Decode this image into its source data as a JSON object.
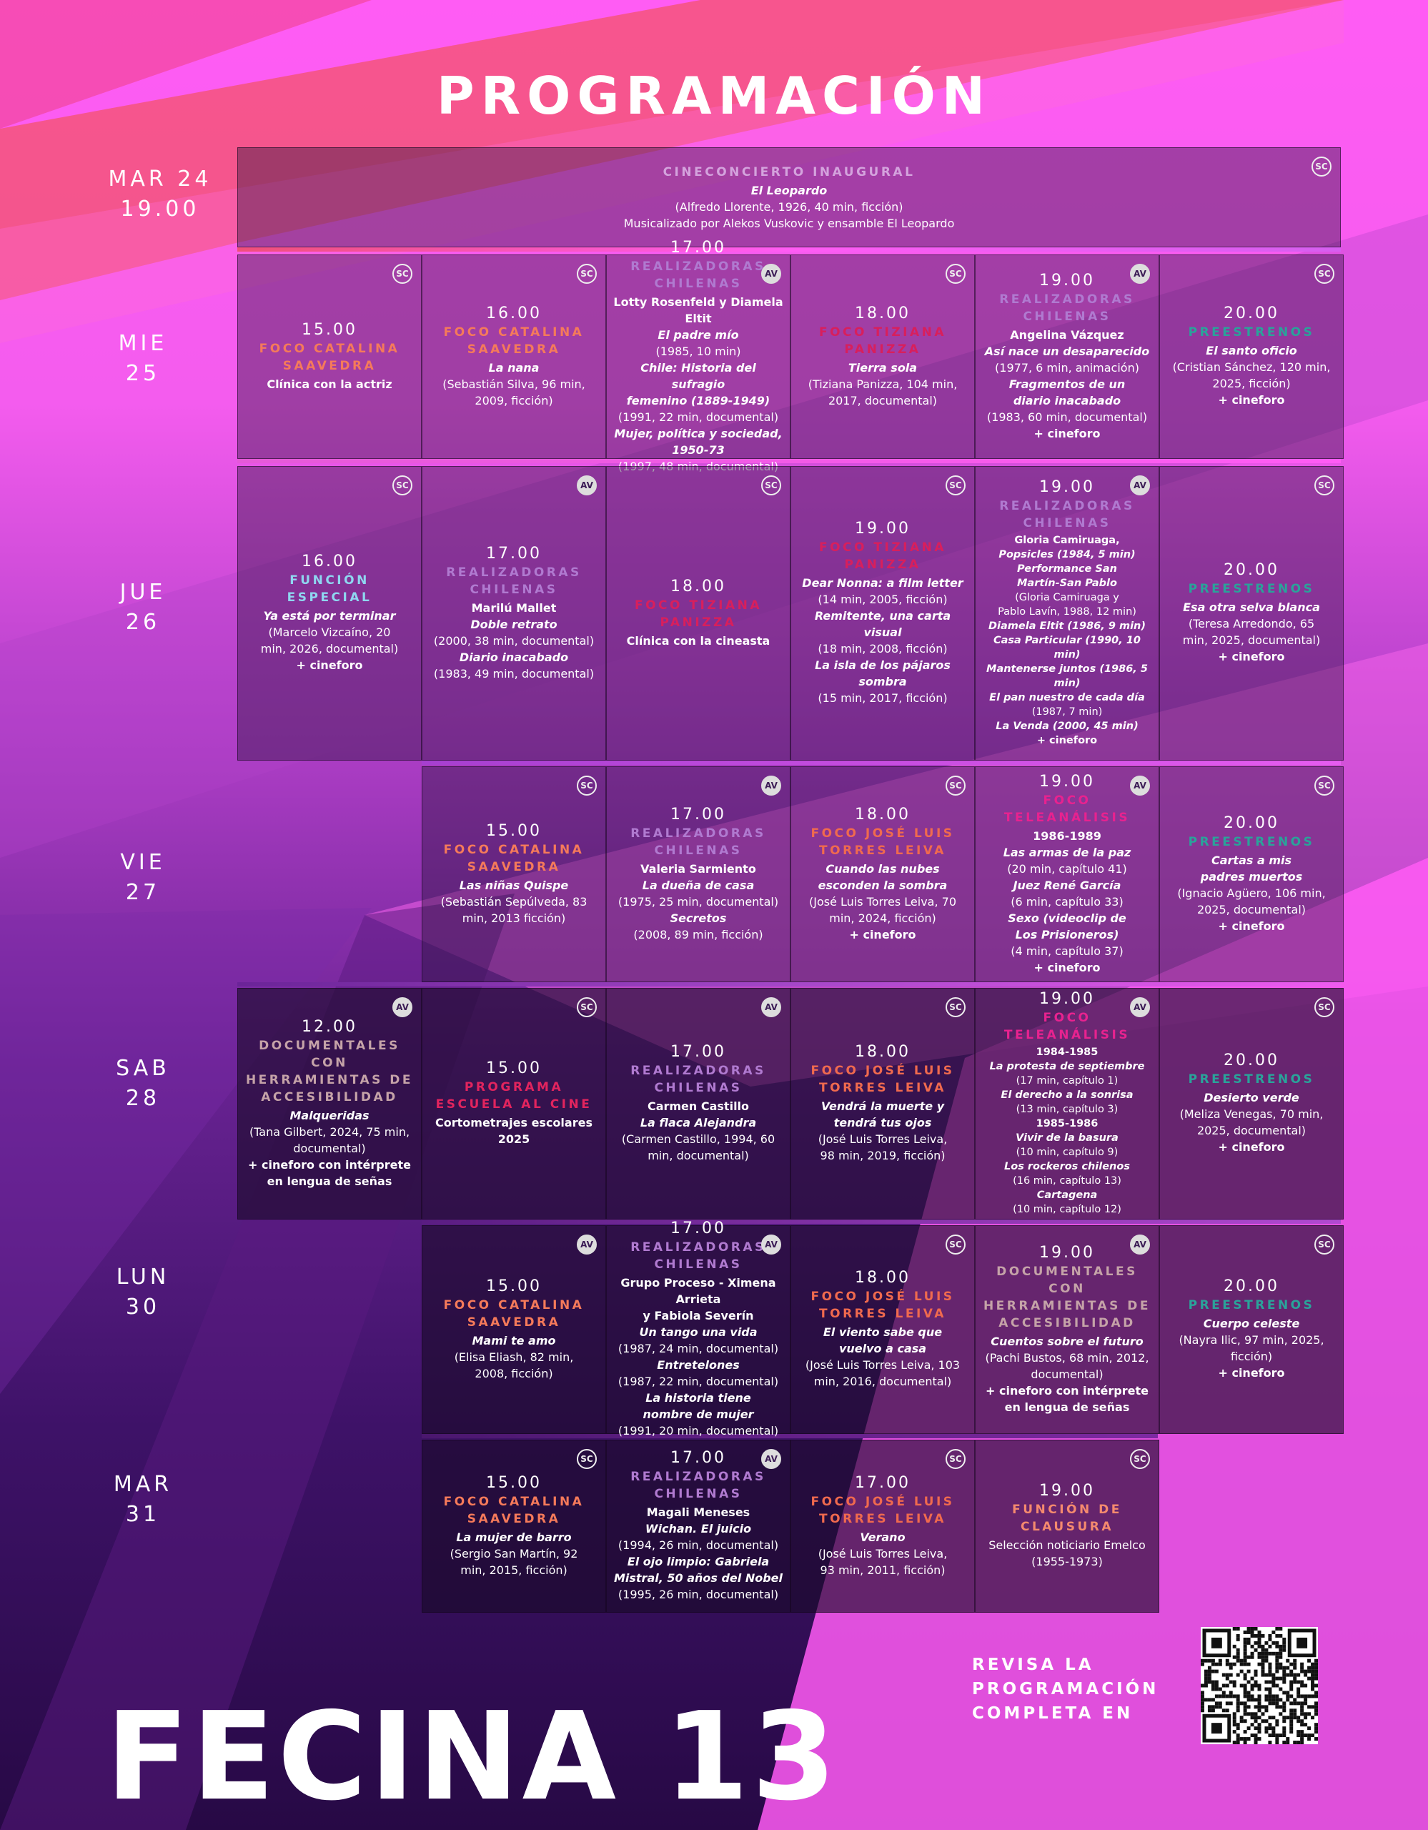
{
  "title": "PROGRAMACIÓN",
  "colors": {
    "foco_catalina": "#f57a5a",
    "realizadoras": "#b07ad0",
    "foco_tiziana": "#d81f5c",
    "preestrenos": "#2aa39a",
    "funcion_especial": "#8fd7f0",
    "foco_jose_luis": "#f06a4e",
    "foco_teleanalisis": "#e8228f",
    "documentales": "#c5a3a8",
    "escuela": "#e2245e",
    "clausura": "#f58a6e",
    "inaugural": "#d4a3dd"
  },
  "days": [
    {
      "day": "MAR 24",
      "time": "19.00"
    },
    {
      "day": "MIE",
      "num": "25"
    },
    {
      "day": "JUE",
      "num": "26"
    },
    {
      "day": "VIE",
      "num": "27"
    },
    {
      "day": "SAB",
      "num": "28"
    },
    {
      "day": "LUN",
      "num": "30"
    },
    {
      "day": "MAR",
      "num": "31"
    }
  ],
  "inaugural": {
    "badge": "SC",
    "category": "CINECONCIERTO INAUGURAL",
    "film": "El Leopardo",
    "line1": "(Alfredo Llorente, 1926, 40 min, ficción)",
    "line2": "Musicalizado por Alekos Vuskovic y ensamble El Leopardo"
  },
  "wed": [
    {
      "badge": "SC",
      "time": "15.00",
      "category": "FOCO CATALINA\nSAAVEDRA",
      "lines": [
        {
          "t": "Clínica con la actriz",
          "s": "b"
        }
      ]
    },
    {
      "badge": "SC",
      "time": "16.00",
      "category": "FOCO CATALINA\nSAAVEDRA",
      "lines": [
        {
          "t": "La nana",
          "s": "i"
        },
        {
          "t": "(Sebastián Silva, 96 min,\n2009, ficción)",
          "s": "n"
        }
      ]
    },
    {
      "badge": "AV",
      "time": "17.00",
      "category": "REALIZADORAS\nCHILENAS",
      "lines": [
        {
          "t": "Lotty Rosenfeld y Diamela Eltit",
          "s": "b"
        },
        {
          "t": "El padre mío",
          "s": "i"
        },
        {
          "t": "(1985, 10 min)",
          "s": "n"
        },
        {
          "t": "Chile: Historia del sufragio\nfemenino (1889-1949)",
          "s": "i"
        },
        {
          "t": "(1991, 22 min, documental)",
          "s": "n"
        },
        {
          "t": "Mujer, política y sociedad,\n1950-73",
          "s": "i"
        },
        {
          "t": "(1997, 48 min, documental)",
          "s": "n"
        }
      ]
    },
    {
      "badge": "SC",
      "time": "18.00",
      "category": "FOCO TIZIANA\nPANIZZA",
      "lines": [
        {
          "t": "Tierra sola",
          "s": "i"
        },
        {
          "t": "(Tiziana Panizza, 104 min,\n2017, documental)",
          "s": "n"
        }
      ]
    },
    {
      "badge": "AV",
      "time": "19.00",
      "category": "REALIZADORAS\nCHILENAS",
      "lines": [
        {
          "t": "Angelina Vázquez",
          "s": "b"
        },
        {
          "t": "Así nace un desaparecido",
          "s": "i"
        },
        {
          "t": "(1977, 6 min, animación)",
          "s": "n"
        },
        {
          "t": "Fragmentos de un\ndiario inacabado",
          "s": "i"
        },
        {
          "t": "(1983, 60 min, documental)",
          "s": "n"
        },
        {
          "t": "+ cineforo",
          "s": "b"
        }
      ]
    },
    {
      "badge": "SC",
      "time": "20.00",
      "category": "PREESTRENOS",
      "lines": [
        {
          "t": "El santo oficio",
          "s": "i"
        },
        {
          "t": "(Cristian Sánchez, 120 min,\n2025, ficción)",
          "s": "n"
        },
        {
          "t": "+ cineforo",
          "s": "b"
        }
      ]
    }
  ],
  "thu": [
    {
      "badge": "SC",
      "time": "16.00",
      "category": "FUNCIÓN\nESPECIAL",
      "lines": [
        {
          "t": "Ya está por terminar",
          "s": "i"
        },
        {
          "t": "(Marcelo Vizcaíno, 20\nmin, 2026, documental)",
          "s": "n"
        },
        {
          "t": "+ cineforo",
          "s": "b"
        }
      ]
    },
    {
      "badge": "AV",
      "time": "17.00",
      "category": "REALIZADORAS\nCHILENAS",
      "lines": [
        {
          "t": "Marilú Mallet",
          "s": "b"
        },
        {
          "t": "Doble retrato",
          "s": "i"
        },
        {
          "t": "(2000, 38 min, documental)",
          "s": "n"
        },
        {
          "t": "Diario inacabado",
          "s": "i"
        },
        {
          "t": "(1983, 49 min, documental)",
          "s": "n"
        }
      ]
    },
    {
      "badge": "SC",
      "time": "18.00",
      "category": "FOCO TIZIANA\nPANIZZA",
      "lines": [
        {
          "t": "Clínica con la cineasta",
          "s": "b"
        }
      ]
    },
    {
      "badge": "SC",
      "time": "19.00",
      "category": "FOCO TIZIANA\nPANIZZA",
      "lines": [
        {
          "t": "Dear Nonna: a film letter",
          "s": "i"
        },
        {
          "t": "(14 min, 2005, ficción)",
          "s": "n"
        },
        {
          "t": "Remitente, una carta visual",
          "s": "i"
        },
        {
          "t": "(18 min, 2008, ficción)",
          "s": "n"
        },
        {
          "t": "La isla de los pájaros sombra",
          "s": "i"
        },
        {
          "t": "(15 min, 2017, ficción)",
          "s": "n"
        }
      ]
    },
    {
      "badge": "AV",
      "time": "19.00",
      "category": "REALIZADORAS\nCHILENAS",
      "lines": [
        {
          "t": "Gloria Camiruaga,",
          "s": "b"
        },
        {
          "t": "Popsicles (1984, 5 min)",
          "s": "i"
        },
        {
          "t": "Performance San\nMartín-San Pablo",
          "s": "i"
        },
        {
          "t": "(Gloria Camiruaga y\nPablo Lavín, 1988, 12 min)",
          "s": "n"
        },
        {
          "t": "Diamela Eltit (1986, 9 min)",
          "s": "i"
        },
        {
          "t": "Casa Particular (1990, 10 min)",
          "s": "i"
        },
        {
          "t": "Mantenerse juntos (1986, 5\nmin)",
          "s": "i"
        },
        {
          "t": "El pan nuestro de cada día",
          "s": "i"
        },
        {
          "t": "(1987, 7 min)",
          "s": "n"
        },
        {
          "t": "La Venda (2000, 45 min)",
          "s": "i"
        },
        {
          "t": "+ cineforo",
          "s": "b"
        }
      ]
    },
    {
      "badge": "SC",
      "time": "20.00",
      "category": "PREESTRENOS",
      "lines": [
        {
          "t": "Esa otra selva blanca",
          "s": "i"
        },
        {
          "t": "(Teresa Arredondo, 65\nmin, 2025, documental)",
          "s": "n"
        },
        {
          "t": "+ cineforo",
          "s": "b"
        }
      ]
    }
  ],
  "fri": [
    {
      "badge": "SC",
      "time": "15.00",
      "category": "FOCO CATALINA\nSAAVEDRA",
      "lines": [
        {
          "t": "Las niñas Quispe",
          "s": "i"
        },
        {
          "t": "(Sebastián Sepúlveda, 83\nmin, 2013 ficción)",
          "s": "n"
        }
      ]
    },
    {
      "badge": "AV",
      "time": "17.00",
      "category": "REALIZADORAS\nCHILENAS",
      "lines": [
        {
          "t": "Valeria Sarmiento",
          "s": "b"
        },
        {
          "t": "La dueña de casa",
          "s": "i"
        },
        {
          "t": "(1975, 25 min, documental)",
          "s": "n"
        },
        {
          "t": "Secretos",
          "s": "i"
        },
        {
          "t": "(2008, 89 min, ficción)",
          "s": "n"
        }
      ]
    },
    {
      "badge": "SC",
      "time": "18.00",
      "category": "FOCO JOSÉ LUIS\nTORRES LEIVA",
      "lines": [
        {
          "t": "Cuando las nubes\nesconden la sombra",
          "s": "i"
        },
        {
          "t": "(José Luis Torres Leiva, 70\nmin, 2024, ficción)",
          "s": "n"
        },
        {
          "t": "+ cineforo",
          "s": "b"
        }
      ]
    },
    {
      "badge": "AV",
      "time": "19.00",
      "category": "FOCO TELEANÁLISIS",
      "lines": [
        {
          "t": "1986-1989",
          "s": "b"
        },
        {
          "t": "Las armas de la paz",
          "s": "i"
        },
        {
          "t": "(20 min, capítulo 41)",
          "s": "n"
        },
        {
          "t": "Juez René García",
          "s": "i"
        },
        {
          "t": "(6 min, capítulo 33)",
          "s": "n"
        },
        {
          "t": "Sexo (videoclip de\nLos Prisioneros)",
          "s": "i"
        },
        {
          "t": "(4 min, capítulo 37)",
          "s": "n"
        },
        {
          "t": "+ cineforo",
          "s": "b"
        }
      ]
    },
    {
      "badge": "SC",
      "time": "20.00",
      "category": "PREESTRENOS",
      "lines": [
        {
          "t": "Cartas a mis\npadres muertos",
          "s": "i"
        },
        {
          "t": "(Ignacio Agüero, 106 min,\n2025, documental)",
          "s": "n"
        },
        {
          "t": "+ cineforo",
          "s": "b"
        }
      ]
    }
  ],
  "sat": [
    {
      "badge": "AV",
      "time": "12.00",
      "category": "DOCUMENTALES CON\nHERRAMIENTAS DE\nACCESIBILIDAD",
      "lines": [
        {
          "t": "Malqueridas",
          "s": "i"
        },
        {
          "t": "(Tana Gilbert, 2024, 75 min,\ndocumental)",
          "s": "n"
        },
        {
          "t": "+ cineforo con intérprete\nen lengua de señas",
          "s": "b"
        }
      ]
    },
    {
      "badge": "SC",
      "time": "15.00",
      "category": "PROGRAMA\nESCUELA AL CINE",
      "lines": [
        {
          "t": "Cortometrajes escolares\n2025",
          "s": "b"
        }
      ]
    },
    {
      "badge": "AV",
      "time": "17.00",
      "category": "REALIZADORAS\nCHILENAS",
      "lines": [
        {
          "t": "Carmen Castillo",
          "s": "b"
        },
        {
          "t": "La flaca Alejandra",
          "s": "i"
        },
        {
          "t": "(Carmen Castillo, 1994, 60\nmin, documental)",
          "s": "n"
        }
      ]
    },
    {
      "badge": "SC",
      "time": "18.00",
      "category": "FOCO JOSÉ LUIS\nTORRES LEIVA",
      "lines": [
        {
          "t": "Vendrá la muerte y\ntendrá tus ojos",
          "s": "i"
        },
        {
          "t": "(José Luis Torres Leiva,\n98 min, 2019, ficción)",
          "s": "n"
        }
      ]
    },
    {
      "badge": "AV",
      "time": "19.00",
      "category": "FOCO TELEANÁLISIS",
      "lines": [
        {
          "t": "1984-1985",
          "s": "b"
        },
        {
          "t": "La protesta de septiembre",
          "s": "i"
        },
        {
          "t": "(17 min, capítulo 1)",
          "s": "n"
        },
        {
          "t": "El derecho a la sonrisa",
          "s": "i"
        },
        {
          "t": "(13 min, capítulo 3)",
          "s": "n"
        },
        {
          "t": "1985-1986",
          "s": "b"
        },
        {
          "t": "Vivir de la basura",
          "s": "i"
        },
        {
          "t": "(10 min, capítulo 9)",
          "s": "n"
        },
        {
          "t": "Los rockeros chilenos",
          "s": "i"
        },
        {
          "t": "(16 min, capítulo 13)",
          "s": "n"
        },
        {
          "t": "Cartagena",
          "s": "i"
        },
        {
          "t": "(10 min, capítulo 12)",
          "s": "n"
        }
      ]
    },
    {
      "badge": "SC",
      "time": "20.00",
      "category": "PREESTRENOS",
      "lines": [
        {
          "t": "Desierto verde",
          "s": "i"
        },
        {
          "t": "(Meliza Venegas, 70 min,\n2025, documental)",
          "s": "n"
        },
        {
          "t": "+ cineforo",
          "s": "b"
        }
      ]
    }
  ],
  "mon": [
    {
      "badge": "AV",
      "time": "15.00",
      "category": "FOCO CATALINA\nSAAVEDRA",
      "lines": [
        {
          "t": "Mami te amo",
          "s": "i"
        },
        {
          "t": "(Elisa Eliash, 82 min,\n2008, ficción)",
          "s": "n"
        }
      ]
    },
    {
      "badge": "AV",
      "time": "17.00",
      "category": "REALIZADORAS\nCHILENAS",
      "lines": [
        {
          "t": "Grupo Proceso - Ximena Arrieta\ny Fabiola Severín",
          "s": "b"
        },
        {
          "t": "Un tango una vida",
          "s": "i"
        },
        {
          "t": "(1987, 24 min, documental)",
          "s": "n"
        },
        {
          "t": "Entretelones",
          "s": "i"
        },
        {
          "t": "(1987, 22 min, documental)",
          "s": "n"
        },
        {
          "t": "La historia tiene\nnombre de mujer",
          "s": "i"
        },
        {
          "t": "(1991, 20 min, documental)",
          "s": "n"
        }
      ]
    },
    {
      "badge": "SC",
      "time": "18.00",
      "category": "FOCO JOSÉ LUIS\nTORRES LEIVA",
      "lines": [
        {
          "t": "El viento sabe que\nvuelvo a casa",
          "s": "i"
        },
        {
          "t": "(José Luis Torres Leiva, 103\nmin, 2016, documental)",
          "s": "n"
        }
      ]
    },
    {
      "badge": "AV",
      "time": "19.00",
      "category": "DOCUMENTALES CON\nHERRAMIENTAS DE\nACCESIBILIDAD",
      "lines": [
        {
          "t": "Cuentos sobre el futuro",
          "s": "i"
        },
        {
          "t": "(Pachi Bustos, 68 min, 2012,\ndocumental)",
          "s": "n"
        },
        {
          "t": "+ cineforo con intérprete\nen lengua de señas",
          "s": "b"
        }
      ]
    },
    {
      "badge": "SC",
      "time": "20.00",
      "category": "PREESTRENOS",
      "lines": [
        {
          "t": "Cuerpo celeste",
          "s": "i"
        },
        {
          "t": "(Nayra Ilic, 97 min, 2025,\nficción)",
          "s": "n"
        },
        {
          "t": "+ cineforo",
          "s": "b"
        }
      ]
    }
  ],
  "tue": [
    {
      "badge": "SC",
      "time": "15.00",
      "category": "FOCO CATALINA\nSAAVEDRA",
      "lines": [
        {
          "t": "La mujer de barro",
          "s": "i"
        },
        {
          "t": "(Sergio San Martín, 92\nmin, 2015, ficción)",
          "s": "n"
        }
      ]
    },
    {
      "badge": "AV",
      "time": "17.00",
      "category": "REALIZADORAS\nCHILENAS",
      "lines": [
        {
          "t": "Magali Meneses",
          "s": "b"
        },
        {
          "t": "Wichan. El juicio",
          "s": "i"
        },
        {
          "t": "(1994, 26 min, documental)",
          "s": "n"
        },
        {
          "t": "El ojo limpio: Gabriela\nMistral, 50 años del Nobel",
          "s": "i"
        },
        {
          "t": "(1995, 26 min, documental)",
          "s": "n"
        }
      ]
    },
    {
      "badge": "SC",
      "time": "17.00",
      "category": "FOCO JOSÉ LUIS\nTORRES LEIVA",
      "lines": [
        {
          "t": "Verano",
          "s": "i"
        },
        {
          "t": "(José Luis Torres Leiva,\n93 min, 2011, ficción)",
          "s": "n"
        }
      ]
    },
    {
      "badge": "SC",
      "time": "19.00",
      "category": "FUNCIÓN DE\nCLAUSURA",
      "lines": [
        {
          "t": "Selección noticiario Emelco\n(1955-1973)",
          "s": "n"
        }
      ]
    }
  ],
  "footer": {
    "revisa": "REVISA LA\nPROGRAMACIÓN\nCOMPLETA EN",
    "brand": "FECINA 13"
  }
}
